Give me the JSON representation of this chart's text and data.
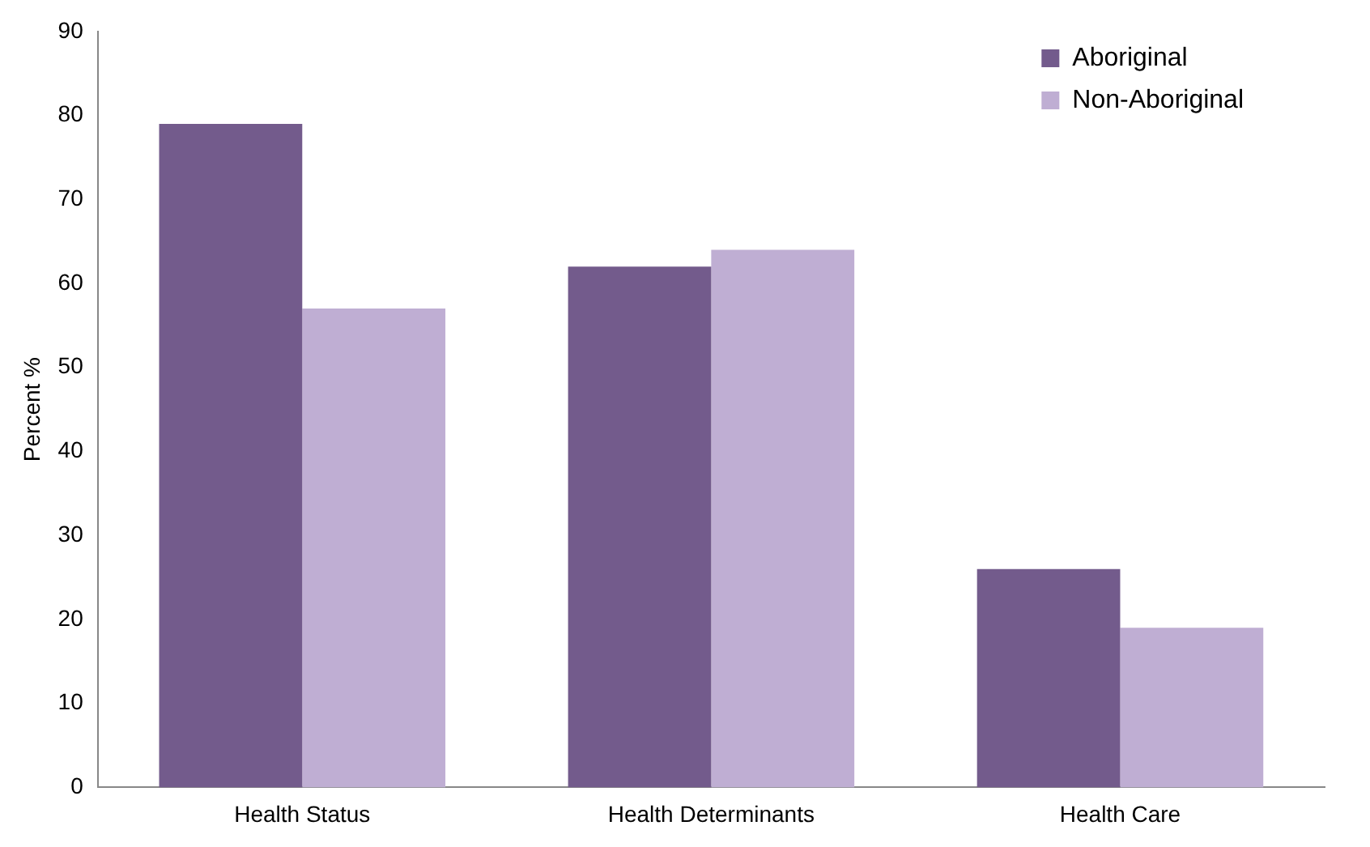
{
  "chart_data": {
    "type": "bar",
    "ylabel": "Percent %",
    "categories": [
      "Health Status",
      "Health Determinants",
      "Health Care"
    ],
    "series": [
      {
        "name": "Aboriginal",
        "color": "#735b8c",
        "values": [
          79,
          62,
          26
        ]
      },
      {
        "name": "Non-Aboriginal",
        "color": "#bfaed3",
        "values": [
          57,
          64,
          19
        ]
      }
    ],
    "ylim": [
      0,
      90
    ],
    "yticks": [
      0,
      10,
      20,
      30,
      40,
      50,
      60,
      70,
      80,
      90
    ],
    "grid": false,
    "legend": "top right"
  }
}
